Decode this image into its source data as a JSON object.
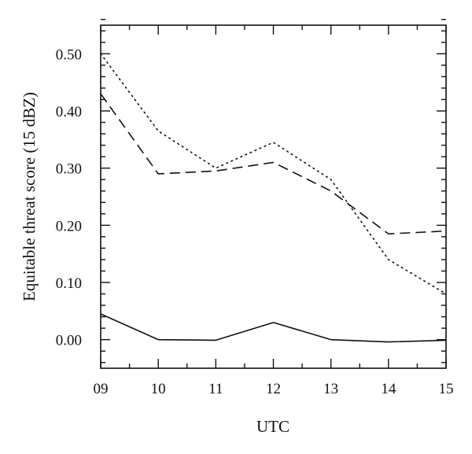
{
  "chart_data": {
    "type": "line",
    "title": "",
    "xlabel": "UTC",
    "ylabel": "Equitable threat score (15 dBZ)",
    "x": [
      "09",
      "10",
      "11",
      "12",
      "13",
      "14",
      "15"
    ],
    "xlim": [
      9,
      15
    ],
    "ylim": [
      -0.05,
      0.55
    ],
    "yticks": [
      "0.00",
      "0.10",
      "0.20",
      "0.30",
      "0.40",
      "0.50"
    ],
    "grid": false,
    "legend": "none",
    "series": [
      {
        "style": "dotted",
        "values": [
          0.5,
          0.365,
          0.3,
          0.345,
          0.28,
          0.14,
          0.08
        ]
      },
      {
        "style": "dashed",
        "values": [
          0.43,
          0.29,
          0.295,
          0.31,
          0.26,
          0.185,
          0.19
        ]
      },
      {
        "style": "solid",
        "values": [
          0.045,
          0.0,
          -0.001,
          0.03,
          0.0,
          -0.004,
          -0.001
        ]
      }
    ]
  }
}
